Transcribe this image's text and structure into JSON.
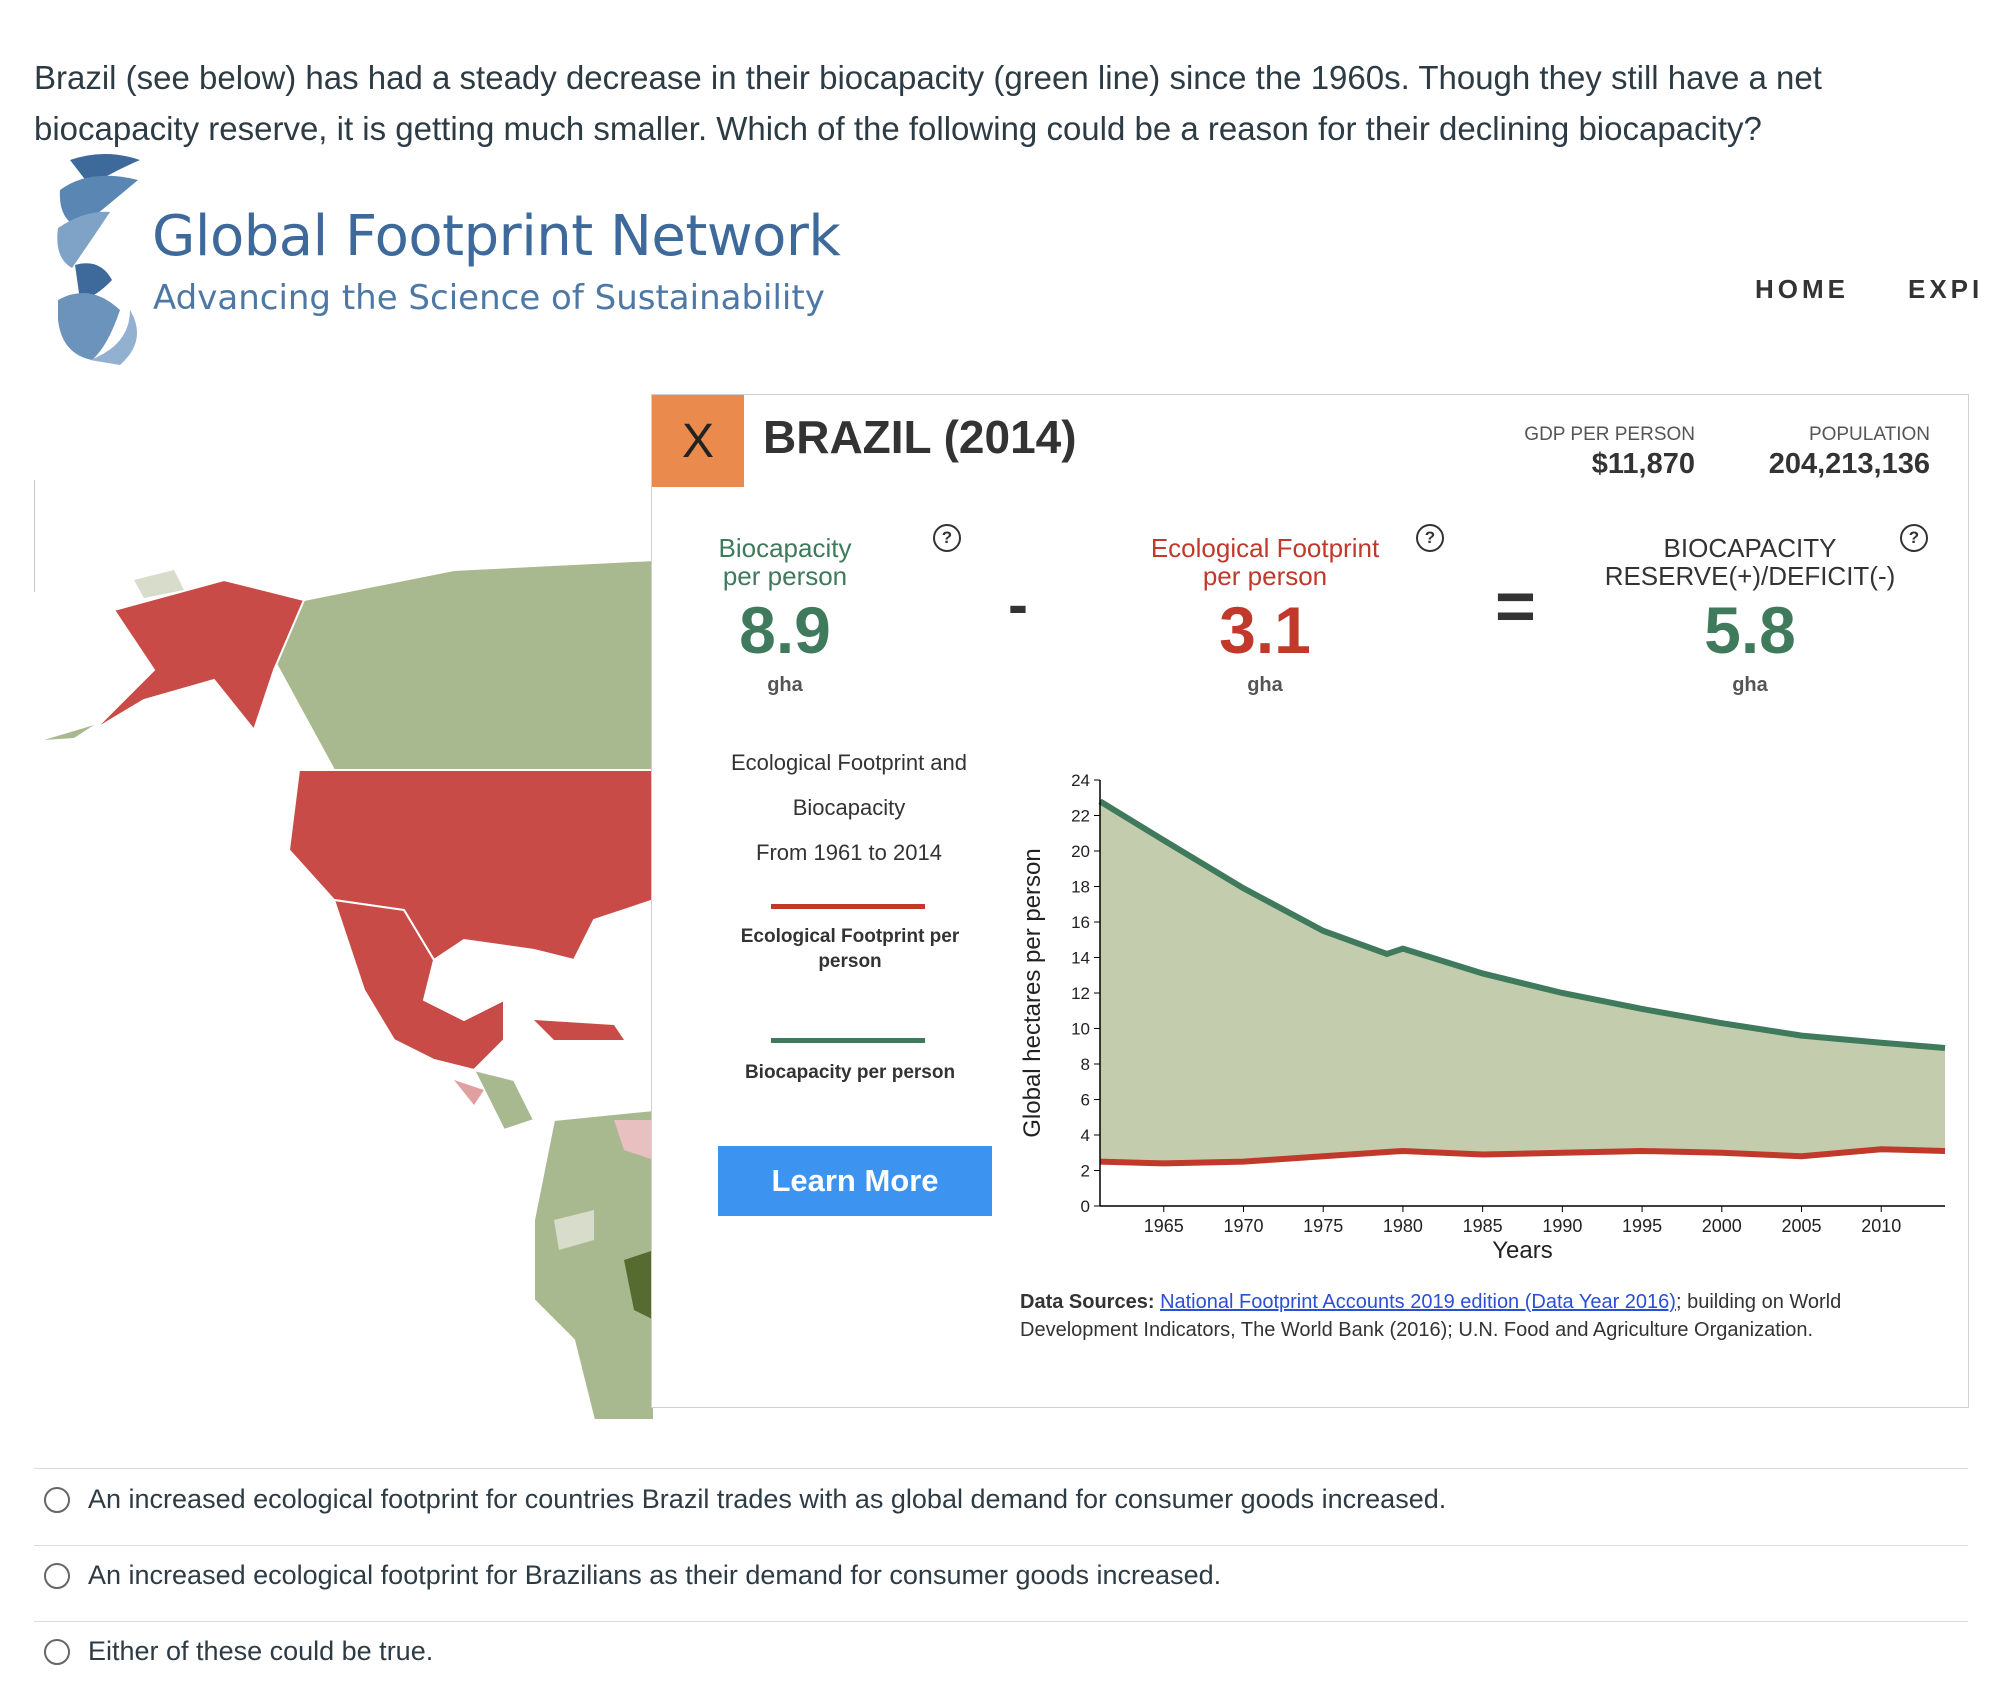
{
  "question": "Brazil (see below) has had a steady decrease in their biocapacity (green line) since the 1960s.  Though they still have a net biocapacity reserve, it is getting much smaller.  Which of the following could be a reason for their declining biocapacity?",
  "site": {
    "title": "Global Footprint Network",
    "tagline": "Advancing the Science of Sustainability",
    "nav": [
      "HOME",
      "EXPI"
    ]
  },
  "popup": {
    "close_label": "X",
    "country": "BRAZIL (2014)",
    "gdp_label": "GDP PER PERSON",
    "gdp_value": "$11,870",
    "population_label": "POPULATION",
    "population_value": "204,213,136",
    "biocapacity": {
      "title_1": "Biocapacity",
      "title_2": "per person",
      "value": "8.9",
      "unit": "gha"
    },
    "footprint": {
      "title_1": "Ecological Footprint",
      "title_2": "per person",
      "value": "3.1",
      "unit": "gha"
    },
    "reserve": {
      "title_1": "BIOCAPACITY",
      "title_2": "RESERVE(+)/DEFICIT(-)",
      "value": "5.8",
      "unit": "gha"
    },
    "minus": "-",
    "equals": "=",
    "help": "?",
    "chart_title_1": "Ecological Footprint and",
    "chart_title_2": "Biocapacity",
    "chart_title_3": "From 1961 to 2014",
    "legend_footprint": "Ecological Footprint per person",
    "legend_biocapacity": "Biocapacity per person",
    "learn_more": "Learn More",
    "sources_label": "Data Sources:",
    "sources_link": "National Footprint Accounts 2019 edition (Data Year 2016)",
    "sources_rest": "; building on World Development Indicators, The World Bank (2016); U.N. Food and Agriculture Organization."
  },
  "colors": {
    "biocapacity": "#3e7a5b",
    "footprint": "#c0392b",
    "reserve_area": "#c3cdad",
    "close_button": "#ea8a4c",
    "learn_more": "#3d94f0",
    "map_red": "#c94b47",
    "map_green": "#a9b98f"
  },
  "chart_data": {
    "type": "area",
    "ylabel": "Global hectares per person",
    "xlabel": "Years",
    "ylim": [
      0,
      24
    ],
    "xlim": [
      1961,
      2014
    ],
    "yticks": [
      0,
      2,
      4,
      6,
      8,
      10,
      12,
      14,
      16,
      18,
      20,
      22,
      24
    ],
    "xticks": [
      1965,
      1970,
      1975,
      1980,
      1985,
      1990,
      1995,
      2000,
      2005,
      2010
    ],
    "series": [
      {
        "name": "Biocapacity per person",
        "x": [
          1961,
          1965,
          1970,
          1975,
          1979,
          1980,
          1985,
          1990,
          1995,
          2000,
          2005,
          2010,
          2014
        ],
        "values": [
          22.8,
          20.6,
          17.9,
          15.5,
          14.2,
          14.5,
          13.1,
          12.0,
          11.1,
          10.3,
          9.6,
          9.2,
          8.9
        ]
      },
      {
        "name": "Ecological Footprint per person",
        "x": [
          1961,
          1965,
          1970,
          1975,
          1980,
          1985,
          1990,
          1995,
          2000,
          2005,
          2010,
          2014
        ],
        "values": [
          2.5,
          2.4,
          2.5,
          2.8,
          3.1,
          2.9,
          3.0,
          3.1,
          3.0,
          2.8,
          3.2,
          3.1
        ]
      }
    ]
  },
  "answers": [
    "An increased ecological footprint for countries Brazil trades with as global demand for consumer goods increased.",
    "An increased ecological footprint for Brazilians as their demand for consumer goods increased.",
    "Either of these could be true."
  ]
}
